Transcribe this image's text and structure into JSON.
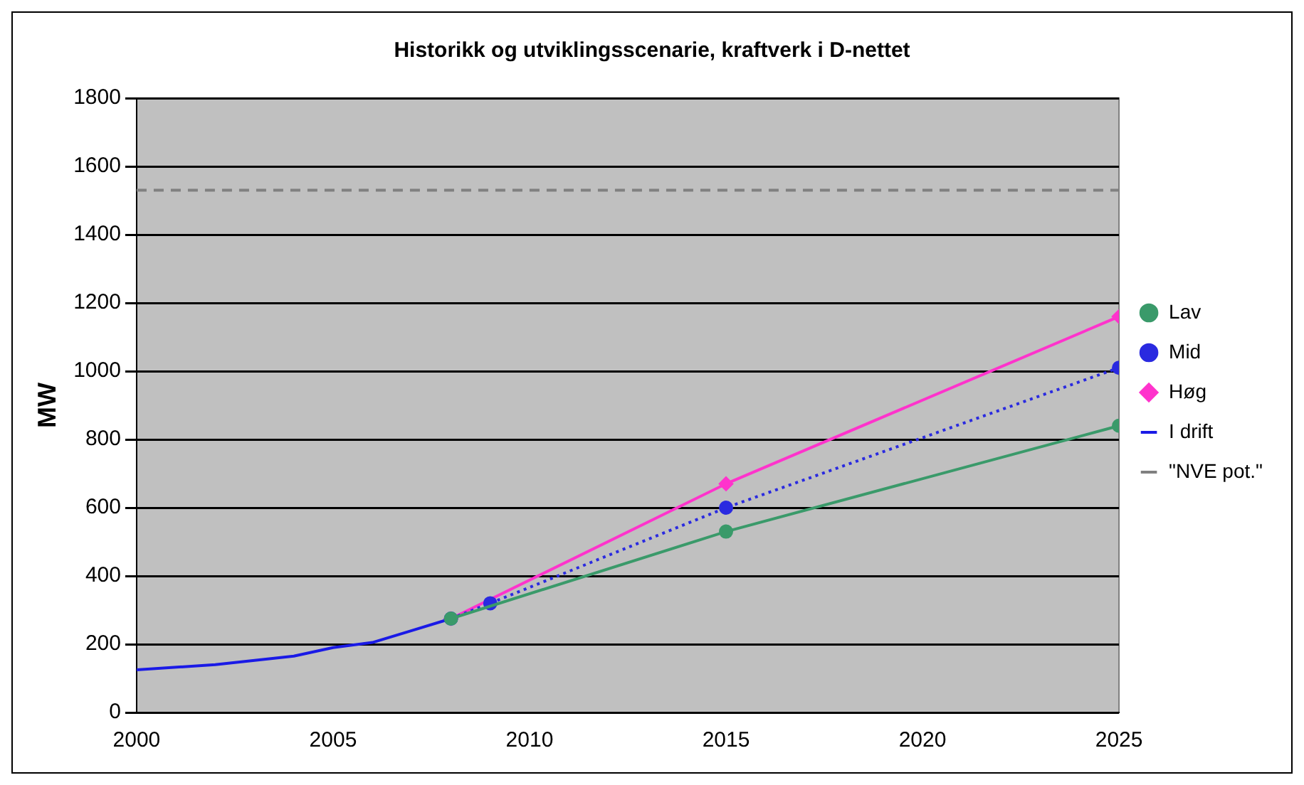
{
  "chart_data": {
    "type": "line",
    "title": "Historikk og utviklingsscenarie, kraftverk i D-nettet",
    "ylabel": "MW",
    "xlim": [
      2000,
      2025
    ],
    "xticks": [
      2000,
      2005,
      2010,
      2015,
      2020,
      2025
    ],
    "ylim": [
      0,
      1800
    ],
    "yticks": [
      0,
      200,
      400,
      600,
      800,
      1000,
      1200,
      1400,
      1600,
      1800
    ],
    "grid": "y",
    "legend": "right",
    "series": [
      {
        "name": "Lav",
        "color": "#3a9a6a",
        "x": [
          2008,
          2015,
          2025
        ],
        "values": [
          275,
          530,
          840
        ],
        "marker": "circle",
        "line_style": "solid"
      },
      {
        "name": "Mid",
        "color": "#2a2ae0",
        "x": [
          2008,
          2009,
          2015,
          2025
        ],
        "values": [
          275,
          320,
          600,
          1010
        ],
        "marker": "circle",
        "line_style": "dotted"
      },
      {
        "name": "Høg",
        "color": "#ff33cc",
        "x": [
          2008,
          2015,
          2025
        ],
        "values": [
          275,
          670,
          1160
        ],
        "marker": "diamond",
        "line_style": "solid"
      },
      {
        "name": "I drift",
        "color": "#1a1ae6",
        "x": [
          2000,
          2002,
          2004,
          2005,
          2006,
          2007,
          2008
        ],
        "values": [
          125,
          140,
          165,
          190,
          205,
          240,
          275
        ],
        "marker": "none",
        "line_style": "solid"
      },
      {
        "name": "\"NVE pot.\"",
        "color": "#808080",
        "x": [
          2000,
          2025
        ],
        "values": [
          1530,
          1530
        ],
        "marker": "none",
        "line_style": "dashed"
      }
    ]
  }
}
